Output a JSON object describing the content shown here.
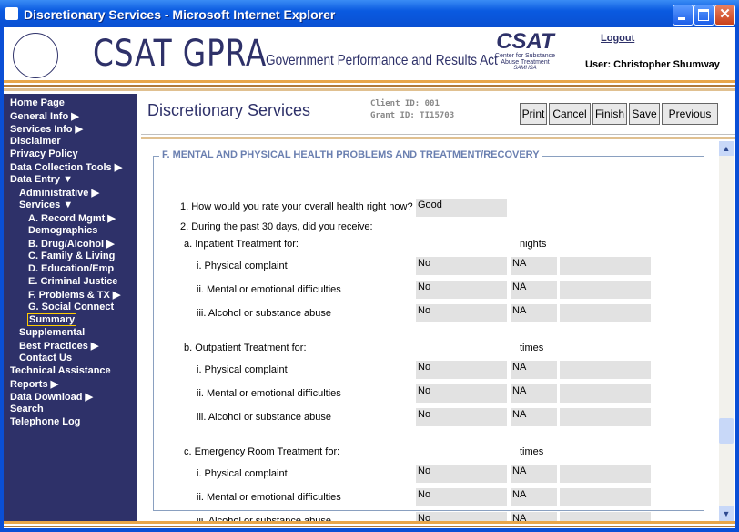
{
  "window": {
    "title": "Discretionary Services - Microsoft Internet Explorer"
  },
  "header": {
    "logo": "CSAT GPRA",
    "subtitle": "Government Performance and Results Act",
    "agency_logo": {
      "name": "CSAT",
      "line1": "Center for Substance",
      "line2": "Abuse Treatment",
      "line3": "SAMHSA"
    },
    "logout": "Logout",
    "user": "User: Christopher Shumway"
  },
  "nav": [
    {
      "label": "Home Page"
    },
    {
      "label": "General Info ▶"
    },
    {
      "label": "Services Info ▶"
    },
    {
      "label": "Disclaimer"
    },
    {
      "label": "Privacy Policy"
    },
    {
      "label": "Data Collection Tools ▶"
    },
    {
      "label": "Data Entry ▼",
      "children": [
        {
          "label": "Administrative ▶"
        },
        {
          "label": "Services ▼",
          "children": [
            {
              "label": "A. Record Mgmt ▶"
            },
            {
              "label": "Demographics"
            },
            {
              "label": "B. Drug/Alcohol ▶"
            },
            {
              "label": "C. Family & Living"
            },
            {
              "label": "D. Education/Emp"
            },
            {
              "label": "E. Criminal Justice"
            },
            {
              "label": "F. Problems & TX ▶"
            },
            {
              "label": "G. Social Connect"
            },
            {
              "label": "Summary",
              "selected": true
            }
          ]
        },
        {
          "label": "Supplemental"
        },
        {
          "label": "Best Practices ▶"
        },
        {
          "label": "Contact Us"
        }
      ]
    },
    {
      "label": "Technical Assistance"
    },
    {
      "label": "Reports ▶"
    },
    {
      "label": "Data Download ▶"
    },
    {
      "label": "Search"
    },
    {
      "label": "Telephone Log"
    }
  ],
  "page": {
    "title": "Discretionary Services",
    "client_id": "Client ID: 001",
    "grant_id": "Grant ID: TI15703",
    "buttons": [
      "Print",
      "Cancel",
      "Finish",
      "Save",
      "Previous"
    ]
  },
  "section": {
    "legend": "F. MENTAL AND PHYSICAL HEALTH PROBLEMS AND TREATMENT/RECOVERY",
    "q1": {
      "label": "1. How would you rate your overall health right now?",
      "answer": "Good"
    },
    "q2": {
      "label": "2. During the past 30 days, did you receive:"
    },
    "groups": [
      {
        "label": "a. Inpatient Treatment for:",
        "unit": "nights",
        "rows": [
          {
            "label": "i. Physical complaint",
            "answer": "No",
            "count": "NA"
          },
          {
            "label": "ii. Mental or emotional difficulties",
            "answer": "No",
            "count": "NA"
          },
          {
            "label": "iii. Alcohol or substance abuse",
            "answer": "No",
            "count": "NA"
          }
        ]
      },
      {
        "label": "b. Outpatient Treatment for:",
        "unit": "times",
        "rows": [
          {
            "label": "i. Physical complaint",
            "answer": "No",
            "count": "NA"
          },
          {
            "label": "ii. Mental or emotional difficulties",
            "answer": "No",
            "count": "NA"
          },
          {
            "label": "iii. Alcohol or substance abuse",
            "answer": "No",
            "count": "NA"
          }
        ]
      },
      {
        "label": "c. Emergency Room Treatment for:",
        "unit": "times",
        "rows": [
          {
            "label": "i. Physical complaint",
            "answer": "No",
            "count": "NA"
          },
          {
            "label": "ii. Mental or emotional difficulties",
            "answer": "No",
            "count": "NA"
          },
          {
            "label": "iii. Alcohol or substance abuse",
            "answer": "No",
            "count": "NA"
          }
        ]
      }
    ]
  }
}
